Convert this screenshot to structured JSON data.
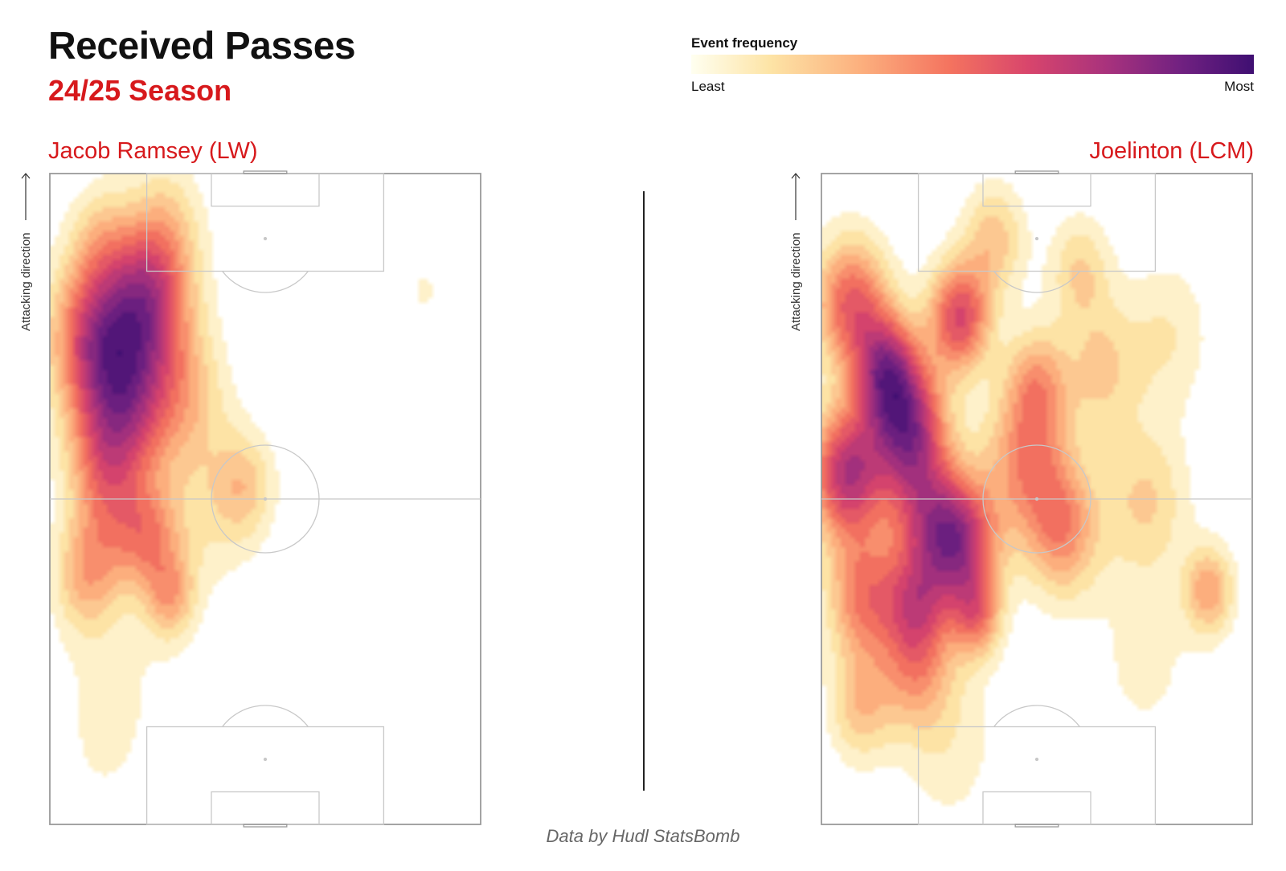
{
  "header": {
    "title": "Received Passes",
    "subtitle": "24/25 Season"
  },
  "legend": {
    "title": "Event frequency",
    "least_label": "Least",
    "most_label": "Most",
    "colors": [
      "#fffff0",
      "#fde4a6",
      "#fcb07e",
      "#f4735f",
      "#d8456c",
      "#a8327d",
      "#712181",
      "#3f0f72"
    ]
  },
  "attacking_label": "Attacking direction",
  "footer": {
    "credit": "Data by Hudl StatsBomb"
  },
  "chart_data": [
    {
      "type": "heatmap",
      "player": "Jacob Ramsey (LW)",
      "coordinates": "pitch 0-100 width (left to right), 0-100 length (0 = own goal, 100 = attacking goal)",
      "hotspots": [
        {
          "x": 20,
          "y": 74,
          "intensity": 1.0,
          "spread": 9
        },
        {
          "x": 10,
          "y": 75,
          "intensity": 0.85,
          "spread": 7
        },
        {
          "x": 17,
          "y": 63,
          "intensity": 0.7,
          "spread": 7
        },
        {
          "x": 23,
          "y": 82,
          "intensity": 0.6,
          "spread": 6
        },
        {
          "x": 12,
          "y": 56,
          "intensity": 0.45,
          "spread": 6
        },
        {
          "x": 23,
          "y": 44,
          "intensity": 0.6,
          "spread": 5
        },
        {
          "x": 28,
          "y": 35,
          "intensity": 0.55,
          "spread": 4
        },
        {
          "x": 8,
          "y": 38,
          "intensity": 0.5,
          "spread": 5
        },
        {
          "x": 14,
          "y": 46,
          "intensity": 0.45,
          "spread": 6
        },
        {
          "x": 45,
          "y": 52,
          "intensity": 0.45,
          "spread": 5
        },
        {
          "x": 33,
          "y": 65,
          "intensity": 0.3,
          "spread": 6
        },
        {
          "x": 27,
          "y": 92,
          "intensity": 0.35,
          "spread": 6
        },
        {
          "x": 12,
          "y": 90,
          "intensity": 0.3,
          "spread": 5
        },
        {
          "x": 35,
          "y": 48,
          "intensity": 0.25,
          "spread": 8
        },
        {
          "x": 87,
          "y": 82,
          "intensity": 0.15,
          "spread": 5
        },
        {
          "x": 15,
          "y": 24,
          "intensity": 0.15,
          "spread": 9
        },
        {
          "x": 12,
          "y": 10,
          "intensity": 0.1,
          "spread": 8
        }
      ]
    },
    {
      "type": "heatmap",
      "player": "Joelinton (LCM)",
      "coordinates": "pitch 0-100 width (left to right), 0-100 length (0 = own goal, 100 = attacking goal)",
      "hotspots": [
        {
          "x": 20,
          "y": 61,
          "intensity": 1.0,
          "spread": 6
        },
        {
          "x": 6,
          "y": 54,
          "intensity": 0.95,
          "spread": 6
        },
        {
          "x": 32,
          "y": 43,
          "intensity": 0.95,
          "spread": 6
        },
        {
          "x": 15,
          "y": 70,
          "intensity": 0.85,
          "spread": 5
        },
        {
          "x": 32,
          "y": 78,
          "intensity": 0.8,
          "spread": 5
        },
        {
          "x": 7,
          "y": 80,
          "intensity": 0.7,
          "spread": 6
        },
        {
          "x": 10,
          "y": 35,
          "intensity": 0.6,
          "spread": 6
        },
        {
          "x": 22,
          "y": 34,
          "intensity": 0.55,
          "spread": 5
        },
        {
          "x": 24,
          "y": 48,
          "intensity": 0.55,
          "spread": 6
        },
        {
          "x": 48,
          "y": 56,
          "intensity": 0.55,
          "spread": 7
        },
        {
          "x": 56,
          "y": 45,
          "intensity": 0.5,
          "spread": 6
        },
        {
          "x": 50,
          "y": 68,
          "intensity": 0.4,
          "spread": 5
        },
        {
          "x": 36,
          "y": 32,
          "intensity": 0.5,
          "spread": 4
        },
        {
          "x": 22,
          "y": 24,
          "intensity": 0.45,
          "spread": 6
        },
        {
          "x": 9,
          "y": 18,
          "intensity": 0.35,
          "spread": 5
        },
        {
          "x": 90,
          "y": 36,
          "intensity": 0.45,
          "spread": 4
        },
        {
          "x": 40,
          "y": 90,
          "intensity": 0.35,
          "spread": 5
        },
        {
          "x": 60,
          "y": 85,
          "intensity": 0.3,
          "spread": 5
        },
        {
          "x": 65,
          "y": 70,
          "intensity": 0.3,
          "spread": 6
        },
        {
          "x": 75,
          "y": 50,
          "intensity": 0.3,
          "spread": 7
        },
        {
          "x": 80,
          "y": 75,
          "intensity": 0.2,
          "spread": 7
        },
        {
          "x": 30,
          "y": 12,
          "intensity": 0.15,
          "spread": 8
        },
        {
          "x": 75,
          "y": 25,
          "intensity": 0.12,
          "spread": 10
        }
      ]
    }
  ]
}
